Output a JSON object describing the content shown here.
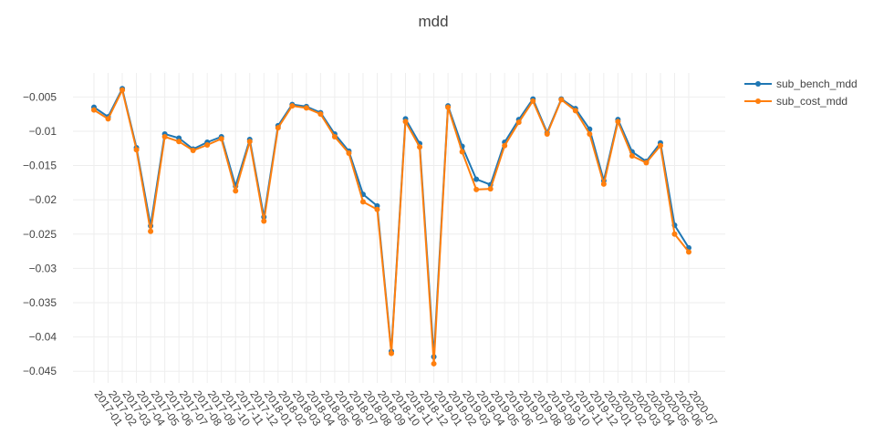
{
  "chart_data": {
    "type": "line",
    "title": "mdd",
    "xlabel": "",
    "ylabel": "",
    "ylim": [
      -0.0467,
      -0.0015
    ],
    "y_ticks": [
      -0.005,
      -0.01,
      -0.015,
      -0.02,
      -0.025,
      -0.03,
      -0.035,
      -0.04,
      -0.045
    ],
    "y_tick_labels": [
      "−0.005",
      "−0.01",
      "−0.015",
      "−0.02",
      "−0.025",
      "−0.03",
      "−0.035",
      "−0.04",
      "−0.045"
    ],
    "grid": true,
    "legend_position": "top-right",
    "x": [
      "2017-01",
      "2017-02",
      "2017-03",
      "2017-04",
      "2017-05",
      "2017-06",
      "2017-07",
      "2017-08",
      "2017-09",
      "2017-10",
      "2017-11",
      "2017-12",
      "2018-01",
      "2018-02",
      "2018-03",
      "2018-04",
      "2018-05",
      "2018-06",
      "2018-07",
      "2018-08",
      "2018-09",
      "2018-10",
      "2018-11",
      "2018-12",
      "2019-01",
      "2019-02",
      "2019-03",
      "2019-04",
      "2019-05",
      "2019-06",
      "2019-07",
      "2019-08",
      "2019-09",
      "2019-10",
      "2019-11",
      "2019-12",
      "2020-01",
      "2020-02",
      "2020-03",
      "2020-04",
      "2020-05",
      "2020-06",
      "2020-07"
    ],
    "series": [
      {
        "name": "sub_bench_mdd",
        "color": "#1f77b4",
        "values": [
          -0.0065,
          -0.0079,
          -0.0038,
          -0.0124,
          -0.0238,
          -0.0104,
          -0.011,
          -0.0126,
          -0.0116,
          -0.0108,
          -0.018,
          -0.0112,
          -0.0225,
          -0.0092,
          -0.0061,
          -0.0064,
          -0.0073,
          -0.0104,
          -0.0129,
          -0.0192,
          -0.0209,
          -0.0421,
          -0.0082,
          -0.0118,
          -0.0429,
          -0.0063,
          -0.0122,
          -0.017,
          -0.0178,
          -0.0116,
          -0.0083,
          -0.0053,
          -0.0102,
          -0.0053,
          -0.0067,
          -0.0097,
          -0.0172,
          -0.0083,
          -0.013,
          -0.0144,
          -0.0117,
          -0.0237,
          -0.027
        ]
      },
      {
        "name": "sub_cost_mdd",
        "color": "#ff7f0e",
        "values": [
          -0.0069,
          -0.0082,
          -0.004,
          -0.0127,
          -0.0246,
          -0.0108,
          -0.0115,
          -0.0128,
          -0.012,
          -0.0111,
          -0.0187,
          -0.0115,
          -0.0231,
          -0.0095,
          -0.0063,
          -0.0066,
          -0.0075,
          -0.0108,
          -0.0132,
          -0.0203,
          -0.0214,
          -0.0424,
          -0.0086,
          -0.0123,
          -0.0439,
          -0.0065,
          -0.013,
          -0.0185,
          -0.0184,
          -0.0121,
          -0.0087,
          -0.0056,
          -0.0104,
          -0.0054,
          -0.007,
          -0.0104,
          -0.0177,
          -0.0086,
          -0.0136,
          -0.0146,
          -0.0121,
          -0.025,
          -0.0276
        ]
      }
    ]
  }
}
